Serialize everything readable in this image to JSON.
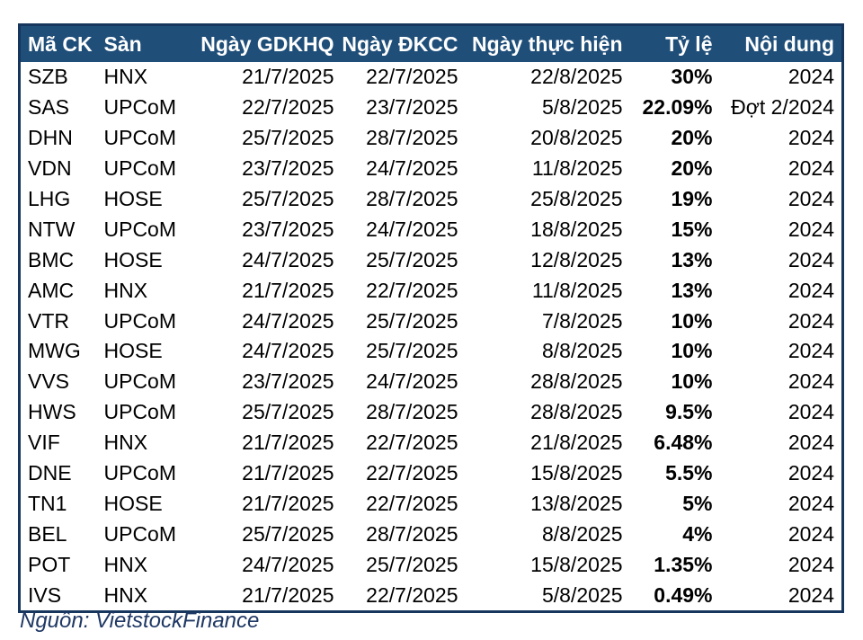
{
  "chart_data": {
    "type": "table",
    "title": "",
    "headers": [
      "Mã CK",
      "Sàn",
      "Ngày GDKHQ",
      "Ngày ĐKCC",
      "Ngày thực hiện",
      "Tỷ lệ",
      "Nội dung"
    ],
    "rows": [
      [
        "SZB",
        "HNX",
        "21/7/2025",
        "22/7/2025",
        "22/8/2025",
        "30%",
        "2024"
      ],
      [
        "SAS",
        "UPCoM",
        "22/7/2025",
        "23/7/2025",
        "5/8/2025",
        "22.09%",
        "Đợt 2/2024"
      ],
      [
        "DHN",
        "UPCoM",
        "25/7/2025",
        "28/7/2025",
        "20/8/2025",
        "20%",
        "2024"
      ],
      [
        "VDN",
        "UPCoM",
        "23/7/2025",
        "24/7/2025",
        "11/8/2025",
        "20%",
        "2024"
      ],
      [
        "LHG",
        "HOSE",
        "25/7/2025",
        "28/7/2025",
        "25/8/2025",
        "19%",
        "2024"
      ],
      [
        "NTW",
        "UPCoM",
        "23/7/2025",
        "24/7/2025",
        "18/8/2025",
        "15%",
        "2024"
      ],
      [
        "BMC",
        "HOSE",
        "24/7/2025",
        "25/7/2025",
        "12/8/2025",
        "13%",
        "2024"
      ],
      [
        "AMC",
        "HNX",
        "21/7/2025",
        "22/7/2025",
        "11/8/2025",
        "13%",
        "2024"
      ],
      [
        "VTR",
        "UPCoM",
        "24/7/2025",
        "25/7/2025",
        "7/8/2025",
        "10%",
        "2024"
      ],
      [
        "MWG",
        "HOSE",
        "24/7/2025",
        "25/7/2025",
        "8/8/2025",
        "10%",
        "2024"
      ],
      [
        "VVS",
        "UPCoM",
        "23/7/2025",
        "24/7/2025",
        "28/8/2025",
        "10%",
        "2024"
      ],
      [
        "HWS",
        "UPCoM",
        "25/7/2025",
        "28/7/2025",
        "28/8/2025",
        "9.5%",
        "2024"
      ],
      [
        "VIF",
        "HNX",
        "21/7/2025",
        "22/7/2025",
        "21/8/2025",
        "6.48%",
        "2024"
      ],
      [
        "DNE",
        "UPCoM",
        "21/7/2025",
        "22/7/2025",
        "15/8/2025",
        "5.5%",
        "2024"
      ],
      [
        "TN1",
        "HOSE",
        "21/7/2025",
        "22/7/2025",
        "13/8/2025",
        "5%",
        "2024"
      ],
      [
        "BEL",
        "UPCoM",
        "25/7/2025",
        "28/7/2025",
        "8/8/2025",
        "4%",
        "2024"
      ],
      [
        "POT",
        "HNX",
        "24/7/2025",
        "25/7/2025",
        "15/8/2025",
        "1.35%",
        "2024"
      ],
      [
        "IVS",
        "HNX",
        "21/7/2025",
        "22/7/2025",
        "5/8/2025",
        "0.49%",
        "2024"
      ]
    ],
    "layout_hints": {
      "header_align": "first two columns left, rest right",
      "bold_column": "Tỷ lệ",
      "grid": "off"
    }
  },
  "source": {
    "caption": "Nguồn: VietstockFinance"
  },
  "colors": {
    "header_background": "#1F4E79",
    "table_border": "#17365D",
    "header_text": "#FFFFFF",
    "body_text": "#000000",
    "source_text": "#1F3864"
  }
}
